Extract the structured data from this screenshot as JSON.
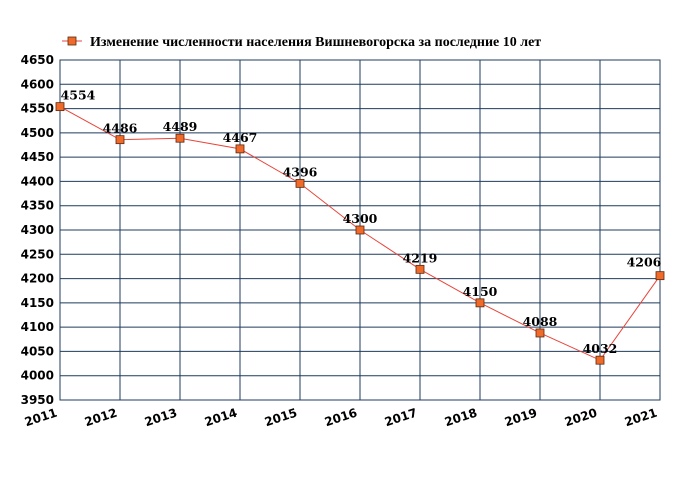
{
  "chart_data": {
    "type": "line",
    "title": "",
    "xlabel": "",
    "ylabel": "",
    "categories": [
      "2011",
      "2012",
      "2013",
      "2014",
      "2015",
      "2016",
      "2017",
      "2018",
      "2019",
      "2020",
      "2021"
    ],
    "series": [
      {
        "name": "Изменение численности населения Вишневогорска за последние 10 лет",
        "values": [
          4554,
          4486,
          4489,
          4467,
          4396,
          4300,
          4219,
          4150,
          4088,
          4032,
          4206
        ],
        "color": "#e8443a",
        "marker_color": "#f06a2a"
      }
    ],
    "ylim": [
      3950,
      4650
    ],
    "yticks": [
      3950,
      4000,
      4050,
      4100,
      4150,
      4200,
      4250,
      4300,
      4350,
      4400,
      4450,
      4500,
      4550,
      4600,
      4650
    ],
    "grid": true,
    "grid_color": "#1f3b5c",
    "legend_position": "top-left"
  }
}
